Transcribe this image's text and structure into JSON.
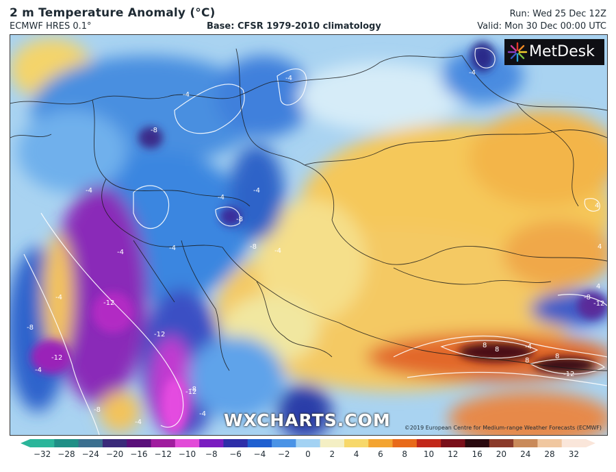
{
  "header": {
    "title": "2 m Temperature Anomaly (°C)",
    "model": "ECMWF HRES 0.1°",
    "base": "Base: CFSR 1979-2010 climatology",
    "run": "Run: Wed 25 Dec 12Z",
    "valid": "Valid: Mon 30 Dec 00:00 UTC"
  },
  "branding": {
    "logo_text": "MetDesk",
    "watermark": "WXCHARTS.COM",
    "copyright": "©2019 European Centre for Medium-range Weather Forecasts (ECMWF)"
  },
  "map": {
    "contour_labels": [
      "-4",
      "-4",
      "-4",
      "-8",
      "-4",
      "-4",
      "-4",
      "-8",
      "-8",
      "-4",
      "-4",
      "-4",
      "-12",
      "-12",
      "-8",
      "-12",
      "-4",
      "-8",
      "-4",
      "-12",
      "-8",
      "-4",
      "8",
      "8",
      "8",
      "8",
      "-12",
      "-4",
      "4",
      "4",
      "4",
      "-8",
      "-12",
      "-4"
    ]
  },
  "legend": {
    "ticks": [
      "−32",
      "−28",
      "−24",
      "−20",
      "−16",
      "−12",
      "−10",
      "−8",
      "−6",
      "−4",
      "−2",
      "0",
      "2",
      "4",
      "6",
      "8",
      "10",
      "12",
      "16",
      "20",
      "24",
      "28",
      "32"
    ],
    "colors": [
      "#2bb59a",
      "#1f8f86",
      "#3b6f8f",
      "#3a2a7a",
      "#5a0f7a",
      "#a01c9e",
      "#e24ad8",
      "#7a1cc0",
      "#2e2ea8",
      "#1f5fd0",
      "#4a93e6",
      "#a3d2f3",
      "#f4efc4",
      "#f7d86a",
      "#f3a431",
      "#e86a1a",
      "#c2281a",
      "#7a0f1a",
      "#2a0a10",
      "#8a3a2a",
      "#c98a5a",
      "#f0c7a0",
      "#fae6da"
    ]
  }
}
